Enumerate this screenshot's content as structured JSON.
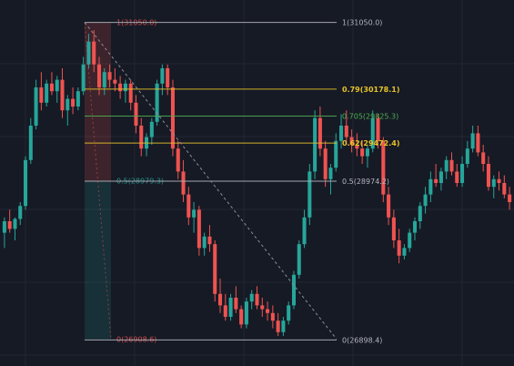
{
  "colors": {
    "background": "#161a25",
    "grid": "#222735",
    "up": "#26a69a",
    "down": "#ef5350",
    "fib_top": "#b2b5be",
    "fib_079": "#e6c229",
    "fib_0705": "#4caf50",
    "fib_062": "#e6c229",
    "fib_05": "#b2b5be",
    "fib_0": "#b2b5be",
    "zone_red": "#ef5350",
    "zone_green": "#26a69a"
  },
  "chart_data": {
    "type": "candlestick",
    "ylim": [
      26700,
      31200
    ],
    "fib_left": {
      "levels": [
        {
          "label": "1(31050.0)",
          "price": 31050.0
        },
        {
          "label": "0.5(28979.3)",
          "price": 28979.3
        },
        {
          "label": "0(26908.6)",
          "price": 26908.6
        }
      ]
    },
    "fib_right": {
      "levels": [
        {
          "label": "1(31050.0)",
          "price": 31050.0,
          "color": "#b2b5be"
        },
        {
          "label": "0.79(30178.1)",
          "price": 30178.1,
          "color": "#e6c229"
        },
        {
          "label": "0.705(29825.3)",
          "price": 29825.3,
          "color": "#4caf50"
        },
        {
          "label": "0.62(29472.4)",
          "price": 29472.4,
          "color": "#e6c229"
        },
        {
          "label": "0.5(28974.2)",
          "price": 28974.2,
          "color": "#b2b5be"
        },
        {
          "label": "0(26898.4)",
          "price": 26898.4,
          "color": "#b2b5be"
        }
      ]
    },
    "candles": [
      [
        28300,
        28500,
        28100,
        28450
      ],
      [
        28450,
        28600,
        28300,
        28350
      ],
      [
        28350,
        28500,
        28200,
        28480
      ],
      [
        28480,
        28700,
        28400,
        28650
      ],
      [
        28650,
        29300,
        28600,
        29250
      ],
      [
        29250,
        29800,
        29200,
        29700
      ],
      [
        29700,
        30300,
        29650,
        30200
      ],
      [
        30200,
        30400,
        29900,
        30000
      ],
      [
        30000,
        30300,
        29950,
        30250
      ],
      [
        30250,
        30400,
        30100,
        30150
      ],
      [
        30150,
        30350,
        30000,
        30300
      ],
      [
        30300,
        30450,
        29800,
        29900
      ],
      [
        29900,
        30100,
        29700,
        30050
      ],
      [
        30050,
        30200,
        29850,
        29950
      ],
      [
        29950,
        30200,
        29900,
        30150
      ],
      [
        30150,
        30600,
        30100,
        30500
      ],
      [
        30500,
        30900,
        30450,
        30800
      ],
      [
        30800,
        30950,
        30400,
        30500
      ],
      [
        30500,
        30600,
        30100,
        30200
      ],
      [
        30200,
        30450,
        30100,
        30400
      ],
      [
        30400,
        30500,
        30200,
        30300
      ],
      [
        30300,
        30450,
        30150,
        30250
      ],
      [
        30250,
        30350,
        30050,
        30150
      ],
      [
        30150,
        30300,
        30000,
        30250
      ],
      [
        30250,
        30300,
        29900,
        30000
      ],
      [
        30000,
        30100,
        29600,
        29700
      ],
      [
        29700,
        29800,
        29300,
        29400
      ],
      [
        29400,
        29600,
        29300,
        29550
      ],
      [
        29550,
        29800,
        29450,
        29750
      ],
      [
        29750,
        30300,
        29700,
        30250
      ],
      [
        30250,
        30500,
        30100,
        30450
      ],
      [
        30450,
        30500,
        30100,
        30200
      ],
      [
        30200,
        30300,
        29300,
        29400
      ],
      [
        29400,
        29500,
        29000,
        29100
      ],
      [
        29100,
        29250,
        28700,
        28800
      ],
      [
        28800,
        28900,
        28400,
        28500
      ],
      [
        28500,
        28700,
        28300,
        28600
      ],
      [
        28600,
        28650,
        28000,
        28100
      ],
      [
        28100,
        28300,
        28000,
        28250
      ],
      [
        28250,
        28400,
        28050,
        28150
      ],
      [
        28150,
        28200,
        27400,
        27500
      ],
      [
        27500,
        27700,
        27250,
        27350
      ],
      [
        27350,
        27500,
        27150,
        27200
      ],
      [
        27200,
        27500,
        27150,
        27450
      ],
      [
        27450,
        27600,
        27250,
        27300
      ],
      [
        27300,
        27350,
        27050,
        27100
      ],
      [
        27100,
        27450,
        27050,
        27400
      ],
      [
        27400,
        27550,
        27300,
        27500
      ],
      [
        27500,
        27600,
        27300,
        27350
      ],
      [
        27350,
        27450,
        27200,
        27300
      ],
      [
        27300,
        27400,
        27150,
        27250
      ],
      [
        27250,
        27350,
        27050,
        27150
      ],
      [
        27150,
        27250,
        26950,
        27000
      ],
      [
        27000,
        27200,
        26950,
        27150
      ],
      [
        27150,
        27400,
        27100,
        27350
      ],
      [
        27350,
        27800,
        27300,
        27750
      ],
      [
        27750,
        28200,
        27700,
        28150
      ],
      [
        28150,
        28600,
        28100,
        28500
      ],
      [
        28500,
        29200,
        28400,
        29100
      ],
      [
        29100,
        29900,
        29000,
        29800
      ],
      [
        29800,
        29950,
        29300,
        29400
      ],
      [
        29400,
        29500,
        28900,
        29000
      ],
      [
        29000,
        29200,
        28800,
        29150
      ],
      [
        29150,
        29600,
        29100,
        29500
      ],
      [
        29500,
        29850,
        29400,
        29700
      ],
      [
        29700,
        29900,
        29450,
        29550
      ],
      [
        29550,
        29650,
        29350,
        29450
      ],
      [
        29450,
        29600,
        29300,
        29400
      ],
      [
        29400,
        29500,
        29200,
        29300
      ],
      [
        29300,
        29450,
        29150,
        29400
      ],
      [
        29400,
        29900,
        29350,
        29800
      ],
      [
        29800,
        29850,
        29400,
        29500
      ],
      [
        29500,
        29550,
        28700,
        28800
      ],
      [
        28800,
        28900,
        28400,
        28500
      ],
      [
        28500,
        28600,
        28100,
        28200
      ],
      [
        28200,
        28350,
        27900,
        28000
      ],
      [
        28000,
        28150,
        27950,
        28100
      ],
      [
        28100,
        28350,
        28050,
        28300
      ],
      [
        28300,
        28500,
        28200,
        28450
      ],
      [
        28450,
        28700,
        28350,
        28650
      ],
      [
        28650,
        28900,
        28550,
        28800
      ],
      [
        28800,
        29100,
        28700,
        29000
      ],
      [
        29000,
        29200,
        28900,
        28950
      ],
      [
        28950,
        29150,
        28850,
        29100
      ],
      [
        29100,
        29300,
        29000,
        29250
      ],
      [
        29250,
        29350,
        29050,
        29100
      ],
      [
        29100,
        29200,
        28900,
        28950
      ],
      [
        28950,
        29300,
        28900,
        29200
      ],
      [
        29200,
        29500,
        29150,
        29400
      ],
      [
        29400,
        29700,
        29350,
        29600
      ],
      [
        29600,
        29700,
        29300,
        29350
      ],
      [
        29350,
        29450,
        29100,
        29200
      ],
      [
        29200,
        29300,
        28850,
        28900
      ],
      [
        28900,
        29050,
        28750,
        29000
      ],
      [
        29000,
        29100,
        28850,
        28950
      ],
      [
        28950,
        29050,
        28750,
        28800
      ],
      [
        28800,
        28900,
        28600,
        28700
      ]
    ]
  }
}
